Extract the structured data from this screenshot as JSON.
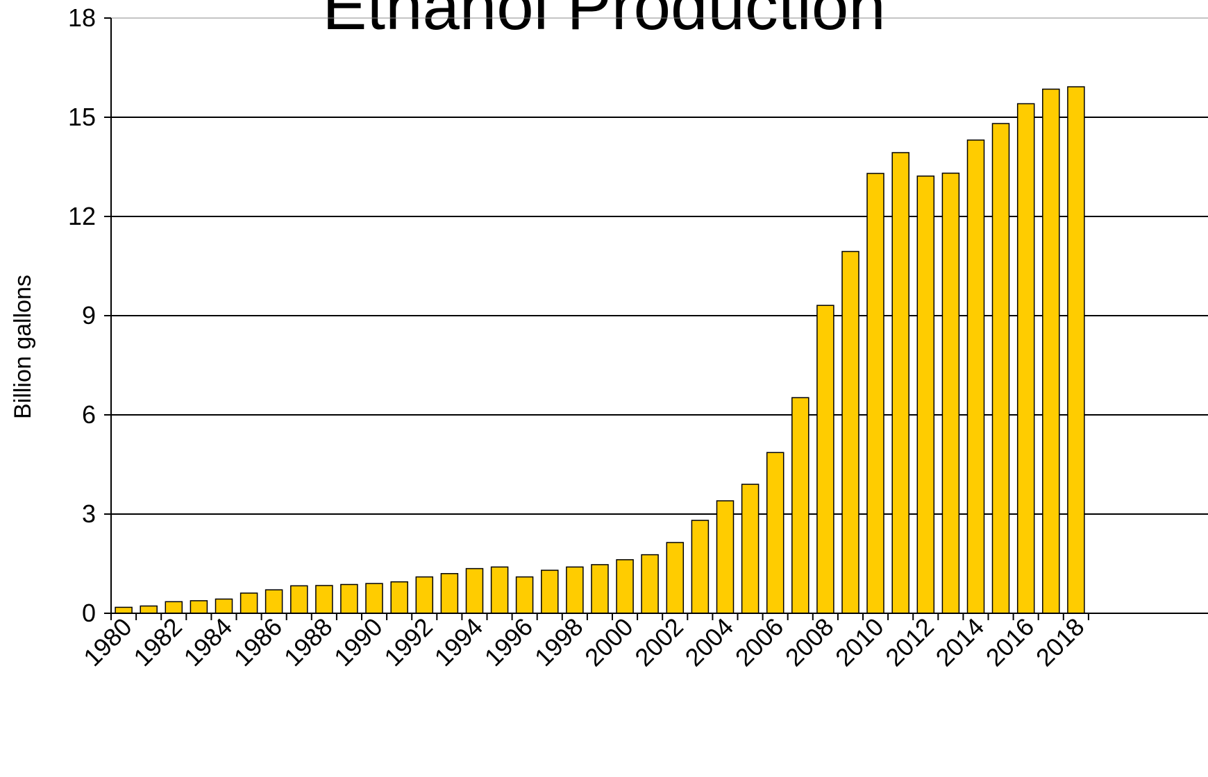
{
  "chart_data": {
    "type": "bar",
    "title": "Ethanol Production",
    "ylabel": "Billion gallons",
    "xlabel": "",
    "ylim": [
      0,
      18
    ],
    "yticks": [
      "0",
      "3",
      "6",
      "9",
      "12",
      "15",
      "18"
    ],
    "grid": true,
    "colors": {
      "bar": "#FFCC00",
      "stroke": "#000000",
      "grid": "#000000"
    },
    "categories": [
      "1980",
      "1981",
      "1982",
      "1983",
      "1984",
      "1985",
      "1986",
      "1987",
      "1988",
      "1989",
      "1990",
      "1991",
      "1992",
      "1993",
      "1994",
      "1995",
      "1996",
      "1997",
      "1998",
      "1999",
      "2000",
      "2001",
      "2002",
      "2003",
      "2004",
      "2005",
      "2006",
      "2007",
      "2008",
      "2009",
      "2010",
      "2011",
      "2012",
      "2013",
      "2014",
      "2015",
      "2016",
      "2017",
      "2018"
    ],
    "values": [
      0.18,
      0.22,
      0.35,
      0.38,
      0.43,
      0.61,
      0.71,
      0.83,
      0.84,
      0.87,
      0.9,
      0.95,
      1.1,
      1.2,
      1.35,
      1.4,
      1.1,
      1.3,
      1.4,
      1.47,
      1.62,
      1.77,
      2.14,
      2.81,
      3.4,
      3.9,
      4.86,
      6.52,
      9.31,
      10.94,
      13.3,
      13.93,
      13.22,
      13.31,
      14.31,
      14.81,
      15.41,
      15.85,
      15.92
    ],
    "xtick_labels": [
      "1980",
      "1982",
      "1984",
      "1986",
      "1988",
      "1990",
      "1992",
      "1994",
      "1996",
      "1998",
      "2000",
      "2002",
      "2004",
      "2006",
      "2008",
      "2010",
      "2012",
      "2014",
      "2016",
      "2018"
    ]
  }
}
